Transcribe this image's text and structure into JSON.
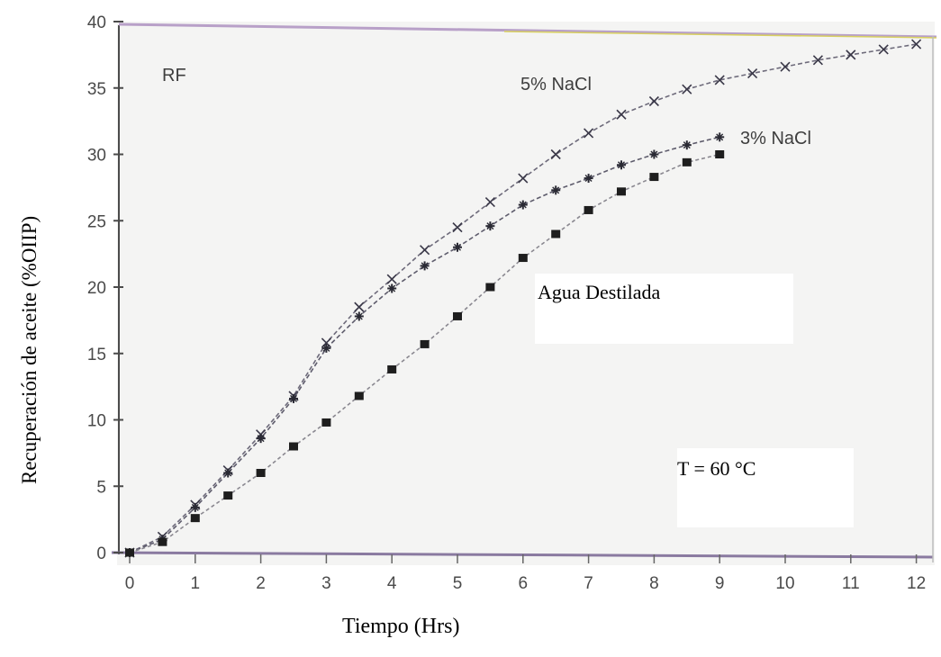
{
  "chart_data": {
    "type": "line",
    "xlabel": "Tiempo (Hrs)",
    "ylabel": "Recuperación de aceite (%OIIP)",
    "xlim": [
      0,
      12
    ],
    "ylim": [
      0,
      40
    ],
    "x_ticks": [
      "0",
      "1",
      "2",
      "3",
      "4",
      "5",
      "6",
      "7",
      "8",
      "9",
      "10",
      "11",
      "12"
    ],
    "y_ticks": [
      "0",
      "5",
      "10",
      "15",
      "20",
      "25",
      "30",
      "35",
      "40"
    ],
    "grid": false,
    "series": [
      {
        "name": "5% NaCl",
        "marker": "x",
        "x": [
          0,
          0.5,
          1,
          1.5,
          2,
          2.5,
          3,
          3.5,
          4,
          4.5,
          5,
          5.5,
          6,
          6.5,
          7,
          7.5,
          8,
          8.5,
          9,
          9.5,
          10,
          10.5,
          11,
          11.5,
          12
        ],
        "y": [
          0,
          1.2,
          3.6,
          6.2,
          8.9,
          11.8,
          15.8,
          18.5,
          20.6,
          22.8,
          24.5,
          26.4,
          28.2,
          30.0,
          31.6,
          33.0,
          34.0,
          34.9,
          35.6,
          36.1,
          36.6,
          37.1,
          37.5,
          37.9,
          38.3
        ]
      },
      {
        "name": "3% NaCl",
        "marker": "star",
        "x": [
          0,
          0.5,
          1,
          1.5,
          2,
          2.5,
          3,
          3.5,
          4,
          4.5,
          5,
          5.5,
          6,
          6.5,
          7,
          7.5,
          8,
          8.5,
          9
        ],
        "y": [
          0,
          1.0,
          3.4,
          6.0,
          8.6,
          11.6,
          15.4,
          17.8,
          19.9,
          21.6,
          23.0,
          24.6,
          26.2,
          27.3,
          28.2,
          29.2,
          30.0,
          30.7,
          31.3
        ]
      },
      {
        "name": "Agua Destilada",
        "marker": "square",
        "x": [
          0,
          0.5,
          1,
          1.5,
          2,
          2.5,
          3,
          3.5,
          4,
          4.5,
          5,
          5.5,
          6,
          6.5,
          7,
          7.5,
          8,
          8.5,
          9
        ],
        "y": [
          0,
          0.8,
          2.6,
          4.3,
          6.0,
          8.0,
          9.8,
          11.8,
          13.8,
          15.7,
          17.8,
          20.0,
          22.2,
          24.0,
          25.8,
          27.2,
          28.3,
          29.4,
          30.0
        ]
      }
    ],
    "annotations": {
      "rf": "RF",
      "label_5": "5% NaCl",
      "label_3": "3% NaCl",
      "label_agua": "Agua Destilada",
      "temperature": "T =  60 °C"
    }
  }
}
